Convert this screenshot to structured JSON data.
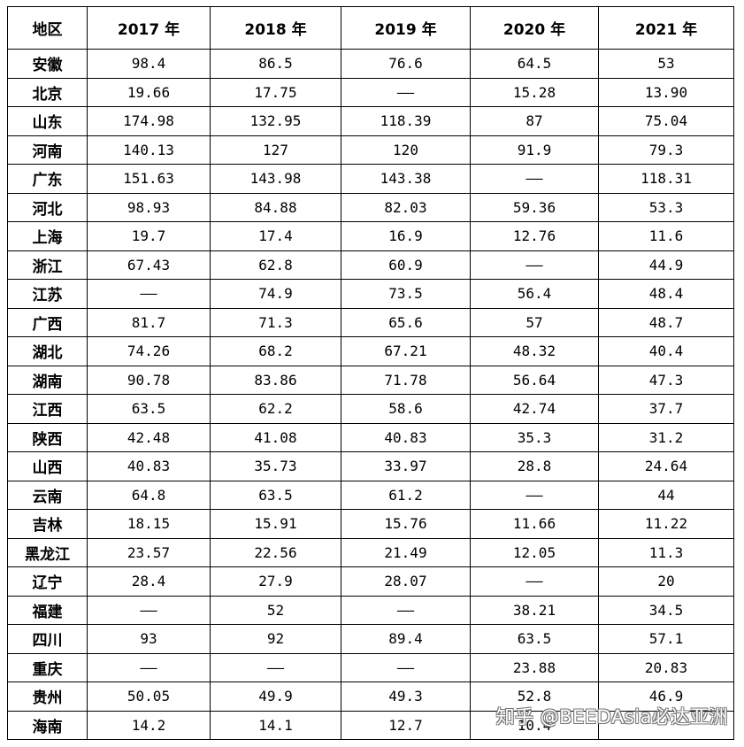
{
  "headers": [
    "地区",
    "2017 年",
    "2018 年",
    "2019 年",
    "2020 年",
    "2021 年"
  ],
  "rows": [
    [
      "安徽",
      "98.4",
      "86.5",
      "76.6",
      "64.5",
      "53"
    ],
    [
      "北京",
      "19.66",
      "17.75",
      "——",
      "15.28",
      "13.90"
    ],
    [
      "山东",
      "174.98",
      "132.95",
      "118.39",
      "87",
      "75.04"
    ],
    [
      "河南",
      "140.13",
      "127",
      "120",
      "91.9",
      "79.3"
    ],
    [
      "广东",
      "151.63",
      "143.98",
      "143.38",
      "——",
      "118.31"
    ],
    [
      "河北",
      "98.93",
      "84.88",
      "82.03",
      "59.36",
      "53.3"
    ],
    [
      "上海",
      "19.7",
      "17.4",
      "16.9",
      "12.76",
      "11.6"
    ],
    [
      "浙江",
      "67.43",
      "62.8",
      "60.9",
      "——",
      "44.9"
    ],
    [
      "江苏",
      "——",
      "74.9",
      "73.5",
      "56.4",
      "48.4"
    ],
    [
      "广西",
      "81.7",
      "71.3",
      "65.6",
      "57",
      "48.7"
    ],
    [
      "湖北",
      "74.26",
      "68.2",
      "67.21",
      "48.32",
      "40.4"
    ],
    [
      "湖南",
      "90.78",
      "83.86",
      "71.78",
      "56.64",
      "47.3"
    ],
    [
      "江西",
      "63.5",
      "62.2",
      "58.6",
      "42.74",
      "37.7"
    ],
    [
      "陕西",
      "42.48",
      "41.08",
      "40.83",
      "35.3",
      "31.2"
    ],
    [
      "山西",
      "40.83",
      "35.73",
      "33.97",
      "28.8",
      "24.64"
    ],
    [
      "云南",
      "64.8",
      "63.5",
      "61.2",
      "——",
      "44"
    ],
    [
      "吉林",
      "18.15",
      "15.91",
      "15.76",
      "11.66",
      "11.22"
    ],
    [
      "黑龙江",
      "23.57",
      "22.56",
      "21.49",
      "12.05",
      "11.3"
    ],
    [
      "辽宁",
      "28.4",
      "27.9",
      "28.07",
      "——",
      "20"
    ],
    [
      "福建",
      "——",
      "52",
      "——",
      "38.21",
      "34.5"
    ],
    [
      "四川",
      "93",
      "92",
      "89.4",
      "63.5",
      "57.1"
    ],
    [
      "重庆",
      "——",
      "——",
      "——",
      "23.88",
      "20.83"
    ],
    [
      "贵州",
      "50.05",
      "49.9",
      "49.3",
      "52.8",
      "46.9"
    ],
    [
      "海南",
      "14.2",
      "14.1",
      "12.7",
      "10.4",
      ""
    ]
  ],
  "watermark": "知乎 @BEEDAsia必达亚洲"
}
